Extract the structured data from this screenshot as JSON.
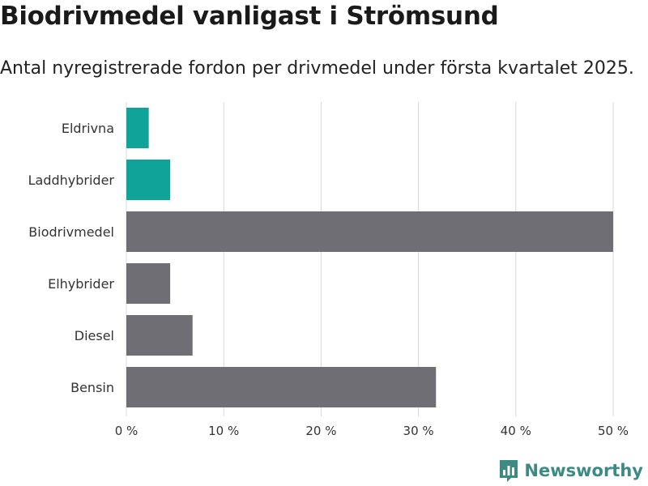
{
  "title": "Biodrivmedel vanligast i Strömsund",
  "subtitle": "Antal nyregistrerade fordon per drivmedel under första kvartalet 2025.",
  "brand": {
    "name": "Newsworthy",
    "icon": "newsworthy-logo-icon",
    "color": "#3d8a85"
  },
  "colors": {
    "highlight": "#0fa39a",
    "default": "#6f6e74",
    "grid": "#d9d9d9"
  },
  "chart_data": {
    "type": "bar",
    "orientation": "horizontal",
    "categories": [
      "Eldrivna",
      "Laddhybrider",
      "Biodrivmedel",
      "Elhybrider",
      "Diesel",
      "Bensin"
    ],
    "values": [
      2.3,
      4.5,
      50.0,
      4.5,
      6.8,
      31.8
    ],
    "highlighted": [
      true,
      true,
      false,
      false,
      false,
      false
    ],
    "xlim": [
      0,
      50
    ],
    "ticks": [
      0,
      10,
      20,
      30,
      40,
      50
    ],
    "tick_labels": [
      "0 %",
      "10 %",
      "20 %",
      "30 %",
      "40 %",
      "50 %"
    ],
    "grid": true,
    "legend": "none"
  }
}
